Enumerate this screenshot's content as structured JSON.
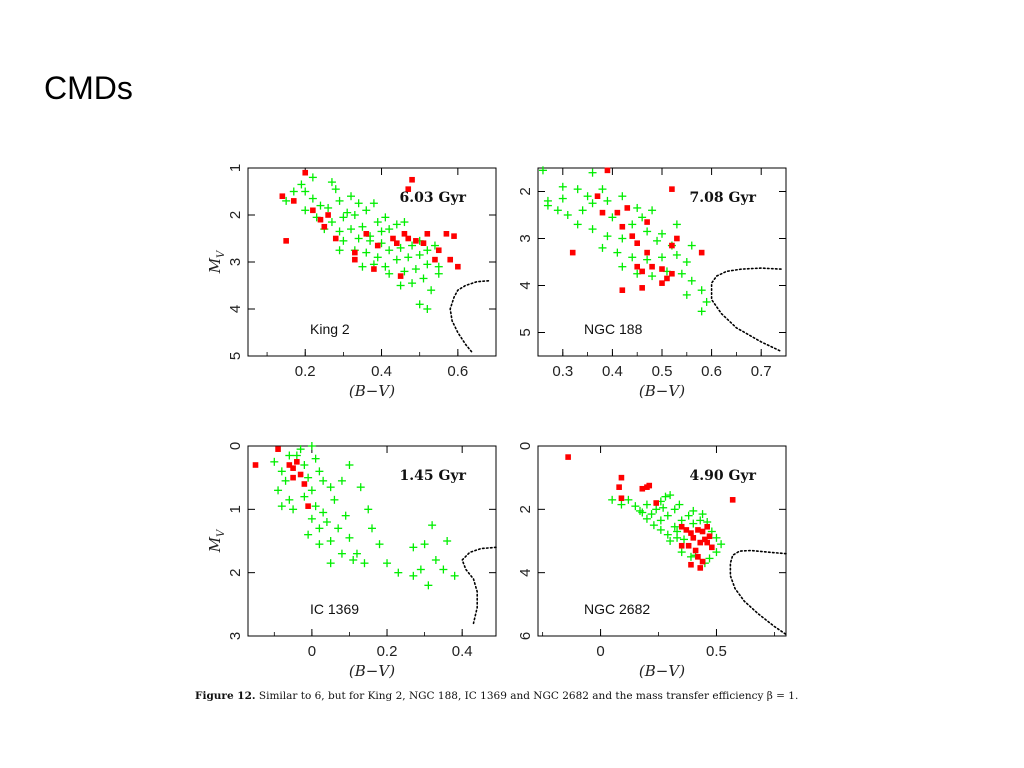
{
  "slide": {
    "title": "CMDs"
  },
  "caption": {
    "label": "Figure 12.",
    "text": "Similar to 6, but for King 2, NGC 188, IC 1369 and NGC 2682 and the mass transfer efficiency β = 1."
  },
  "colors": {
    "blue_stragglers": "#ff0000",
    "models": "#00ee00",
    "isochrone": "#000000"
  },
  "chart_data": [
    {
      "type": "scatter",
      "panel": "top-left",
      "cluster": "King 2",
      "age_label": "6.03 Gyr",
      "xlabel": "(B−V)",
      "ylabel": "M_V",
      "xlim": [
        0.05,
        0.7
      ],
      "ylim": [
        1,
        5
      ],
      "y_inverted": true,
      "xticks": [
        "0.2",
        "0.4",
        "0.6"
      ],
      "yticks": [
        "1",
        "2",
        "3",
        "4",
        "5"
      ],
      "red_points": [
        [
          0.2,
          1.1
        ],
        [
          0.14,
          1.6
        ],
        [
          0.17,
          1.7
        ],
        [
          0.22,
          1.9
        ],
        [
          0.15,
          2.55
        ],
        [
          0.24,
          2.1
        ],
        [
          0.26,
          2.0
        ],
        [
          0.25,
          2.25
        ],
        [
          0.28,
          2.5
        ],
        [
          0.33,
          2.8
        ],
        [
          0.36,
          2.4
        ],
        [
          0.39,
          2.65
        ],
        [
          0.43,
          2.5
        ],
        [
          0.44,
          2.6
        ],
        [
          0.46,
          2.4
        ],
        [
          0.47,
          2.5
        ],
        [
          0.49,
          2.55
        ],
        [
          0.47,
          1.45
        ],
        [
          0.48,
          1.25
        ],
        [
          0.51,
          2.6
        ],
        [
          0.52,
          2.4
        ],
        [
          0.54,
          2.95
        ],
        [
          0.55,
          2.75
        ],
        [
          0.57,
          2.4
        ],
        [
          0.58,
          2.95
        ],
        [
          0.59,
          2.45
        ],
        [
          0.6,
          3.1
        ],
        [
          0.38,
          3.15
        ],
        [
          0.45,
          3.3
        ],
        [
          0.33,
          2.95
        ]
      ],
      "green_points": [
        [
          0.22,
          1.2
        ],
        [
          0.19,
          1.35
        ],
        [
          0.17,
          1.5
        ],
        [
          0.2,
          1.5
        ],
        [
          0.28,
          1.45
        ],
        [
          0.15,
          1.7
        ],
        [
          0.22,
          1.65
        ],
        [
          0.26,
          1.85
        ],
        [
          0.29,
          1.7
        ],
        [
          0.32,
          1.6
        ],
        [
          0.34,
          1.75
        ],
        [
          0.2,
          1.9
        ],
        [
          0.23,
          2.05
        ],
        [
          0.27,
          2.15
        ],
        [
          0.3,
          2.05
        ],
        [
          0.33,
          2.0
        ],
        [
          0.36,
          1.9
        ],
        [
          0.38,
          1.75
        ],
        [
          0.25,
          2.3
        ],
        [
          0.29,
          2.35
        ],
        [
          0.32,
          2.3
        ],
        [
          0.35,
          2.25
        ],
        [
          0.39,
          2.15
        ],
        [
          0.41,
          2.05
        ],
        [
          0.3,
          2.55
        ],
        [
          0.34,
          2.5
        ],
        [
          0.37,
          2.55
        ],
        [
          0.4,
          2.35
        ],
        [
          0.42,
          2.3
        ],
        [
          0.44,
          2.2
        ],
        [
          0.46,
          2.15
        ],
        [
          0.33,
          2.75
        ],
        [
          0.36,
          2.8
        ],
        [
          0.39,
          2.9
        ],
        [
          0.42,
          2.75
        ],
        [
          0.45,
          2.7
        ],
        [
          0.48,
          2.65
        ],
        [
          0.5,
          2.55
        ],
        [
          0.38,
          3.05
        ],
        [
          0.41,
          3.1
        ],
        [
          0.44,
          2.95
        ],
        [
          0.47,
          2.9
        ],
        [
          0.5,
          2.85
        ],
        [
          0.52,
          2.75
        ],
        [
          0.54,
          2.65
        ],
        [
          0.42,
          3.25
        ],
        [
          0.46,
          3.2
        ],
        [
          0.49,
          3.15
        ],
        [
          0.52,
          3.05
        ],
        [
          0.55,
          3.1
        ],
        [
          0.48,
          3.45
        ],
        [
          0.51,
          3.35
        ],
        [
          0.53,
          3.6
        ],
        [
          0.5,
          3.9
        ],
        [
          0.52,
          4.0
        ],
        [
          0.55,
          3.25
        ],
        [
          0.45,
          3.5
        ],
        [
          0.35,
          3.1
        ],
        [
          0.37,
          2.45
        ],
        [
          0.29,
          2.75
        ],
        [
          0.24,
          1.8
        ],
        [
          0.27,
          1.3
        ],
        [
          0.31,
          1.95
        ],
        [
          0.4,
          2.6
        ]
      ],
      "isochrone": [
        [
          0.68,
          3.4
        ],
        [
          0.65,
          3.42
        ],
        [
          0.62,
          3.5
        ],
        [
          0.6,
          3.6
        ],
        [
          0.59,
          3.75
        ],
        [
          0.58,
          4.0
        ],
        [
          0.585,
          4.25
        ],
        [
          0.6,
          4.5
        ],
        [
          0.62,
          4.75
        ],
        [
          0.64,
          4.95
        ]
      ]
    },
    {
      "type": "scatter",
      "panel": "top-right",
      "cluster": "NGC 188",
      "age_label": "7.08 Gyr",
      "xlabel": "(B−V)",
      "ylabel": "M_V",
      "xlim": [
        0.25,
        0.75
      ],
      "ylim": [
        1.5,
        5.5
      ],
      "y_inverted": true,
      "xticks": [
        "0.3",
        "0.4",
        "0.5",
        "0.6",
        "0.7"
      ],
      "yticks": [
        "2",
        "3",
        "4",
        "5"
      ],
      "red_points": [
        [
          0.39,
          1.55
        ],
        [
          0.37,
          2.1
        ],
        [
          0.38,
          2.45
        ],
        [
          0.41,
          2.45
        ],
        [
          0.43,
          2.35
        ],
        [
          0.42,
          2.75
        ],
        [
          0.44,
          2.95
        ],
        [
          0.47,
          2.65
        ],
        [
          0.45,
          3.1
        ],
        [
          0.47,
          3.3
        ],
        [
          0.45,
          3.6
        ],
        [
          0.46,
          3.7
        ],
        [
          0.48,
          3.6
        ],
        [
          0.5,
          3.65
        ],
        [
          0.52,
          3.75
        ],
        [
          0.51,
          3.85
        ],
        [
          0.5,
          3.95
        ],
        [
          0.52,
          3.15
        ],
        [
          0.53,
          3.0
        ],
        [
          0.42,
          4.1
        ],
        [
          0.46,
          4.05
        ],
        [
          0.58,
          3.3
        ],
        [
          0.32,
          3.3
        ],
        [
          0.52,
          1.95
        ]
      ],
      "green_points": [
        [
          0.26,
          1.55
        ],
        [
          0.3,
          1.9
        ],
        [
          0.33,
          1.95
        ],
        [
          0.36,
          1.6
        ],
        [
          0.38,
          1.95
        ],
        [
          0.27,
          2.3
        ],
        [
          0.29,
          2.4
        ],
        [
          0.31,
          2.5
        ],
        [
          0.34,
          2.4
        ],
        [
          0.36,
          2.25
        ],
        [
          0.39,
          2.2
        ],
        [
          0.42,
          2.1
        ],
        [
          0.45,
          2.35
        ],
        [
          0.48,
          2.4
        ],
        [
          0.33,
          2.7
        ],
        [
          0.36,
          2.8
        ],
        [
          0.39,
          2.95
        ],
        [
          0.42,
          3.0
        ],
        [
          0.44,
          2.7
        ],
        [
          0.47,
          2.85
        ],
        [
          0.5,
          2.9
        ],
        [
          0.53,
          2.7
        ],
        [
          0.38,
          3.2
        ],
        [
          0.41,
          3.3
        ],
        [
          0.44,
          3.4
        ],
        [
          0.47,
          3.45
        ],
        [
          0.5,
          3.4
        ],
        [
          0.53,
          3.35
        ],
        [
          0.55,
          3.5
        ],
        [
          0.42,
          3.6
        ],
        [
          0.45,
          3.75
        ],
        [
          0.48,
          3.8
        ],
        [
          0.51,
          3.7
        ],
        [
          0.54,
          3.75
        ],
        [
          0.56,
          3.9
        ],
        [
          0.55,
          4.2
        ],
        [
          0.58,
          4.1
        ],
        [
          0.59,
          4.35
        ],
        [
          0.58,
          4.55
        ],
        [
          0.49,
          3.05
        ],
        [
          0.4,
          2.55
        ],
        [
          0.35,
          2.1
        ],
        [
          0.46,
          2.55
        ],
        [
          0.52,
          3.15
        ],
        [
          0.56,
          3.15
        ],
        [
          0.3,
          2.15
        ],
        [
          0.27,
          2.2
        ]
      ],
      "isochrone": [
        [
          0.74,
          3.65
        ],
        [
          0.7,
          3.63
        ],
        [
          0.66,
          3.65
        ],
        [
          0.63,
          3.7
        ],
        [
          0.61,
          3.8
        ],
        [
          0.6,
          3.95
        ],
        [
          0.6,
          4.3
        ],
        [
          0.62,
          4.6
        ],
        [
          0.65,
          4.9
        ],
        [
          0.7,
          5.2
        ],
        [
          0.74,
          5.4
        ]
      ]
    },
    {
      "type": "scatter",
      "panel": "bottom-left",
      "cluster": "IC 1369",
      "age_label": "1.45 Gyr",
      "xlabel": "(B−V)",
      "ylabel": "M_V",
      "xlim": [
        -0.17,
        0.49
      ],
      "ylim": [
        0,
        3
      ],
      "y_inverted": true,
      "xticks": [
        "0",
        "0.2",
        "0.4"
      ],
      "yticks": [
        "0",
        "1",
        "2",
        "3"
      ],
      "red_points": [
        [
          -0.15,
          0.3
        ],
        [
          -0.09,
          0.05
        ],
        [
          -0.06,
          0.3
        ],
        [
          -0.05,
          0.35
        ],
        [
          -0.04,
          0.25
        ],
        [
          -0.03,
          0.45
        ],
        [
          -0.02,
          0.6
        ],
        [
          -0.01,
          0.95
        ],
        [
          -0.05,
          0.5
        ]
      ],
      "green_points": [
        [
          -0.1,
          0.25
        ],
        [
          -0.08,
          0.4
        ],
        [
          -0.07,
          0.55
        ],
        [
          -0.09,
          0.7
        ],
        [
          -0.06,
          0.85
        ],
        [
          -0.05,
          1.0
        ],
        [
          -0.04,
          0.15
        ],
        [
          -0.03,
          0.05
        ],
        [
          -0.02,
          0.3
        ],
        [
          -0.01,
          0.5
        ],
        [
          0.0,
          0.0
        ],
        [
          0.01,
          0.2
        ],
        [
          0.02,
          0.4
        ],
        [
          0.03,
          0.55
        ],
        [
          0.0,
          0.7
        ],
        [
          -0.02,
          0.8
        ],
        [
          0.01,
          0.95
        ],
        [
          0.03,
          1.05
        ],
        [
          0.05,
          0.65
        ],
        [
          0.06,
          0.85
        ],
        [
          0.04,
          1.2
        ],
        [
          0.02,
          1.3
        ],
        [
          0.0,
          1.15
        ],
        [
          -0.01,
          1.4
        ],
        [
          0.02,
          1.55
        ],
        [
          0.05,
          1.5
        ],
        [
          0.07,
          1.3
        ],
        [
          0.09,
          1.1
        ],
        [
          0.1,
          1.45
        ],
        [
          0.12,
          1.7
        ],
        [
          0.14,
          1.85
        ],
        [
          0.08,
          1.7
        ],
        [
          0.05,
          1.85
        ],
        [
          0.13,
          0.65
        ],
        [
          0.15,
          1.0
        ],
        [
          0.16,
          1.3
        ],
        [
          0.18,
          1.55
        ],
        [
          0.2,
          1.85
        ],
        [
          0.23,
          2.0
        ],
        [
          0.27,
          1.6
        ],
        [
          0.3,
          1.55
        ],
        [
          0.33,
          1.8
        ],
        [
          0.35,
          1.95
        ],
        [
          0.38,
          2.05
        ],
        [
          0.31,
          2.2
        ],
        [
          0.29,
          1.95
        ],
        [
          0.32,
          1.25
        ],
        [
          0.36,
          1.5
        ],
        [
          -0.06,
          0.15
        ],
        [
          0.1,
          0.3
        ],
        [
          0.08,
          0.55
        ],
        [
          -0.08,
          0.95
        ],
        [
          0.11,
          1.8
        ],
        [
          0.27,
          2.05
        ]
      ],
      "isochrone": [
        [
          0.49,
          1.6
        ],
        [
          0.45,
          1.62
        ],
        [
          0.42,
          1.68
        ],
        [
          0.4,
          1.8
        ],
        [
          0.41,
          1.95
        ],
        [
          0.43,
          2.1
        ],
        [
          0.44,
          2.3
        ],
        [
          0.44,
          2.55
        ],
        [
          0.43,
          2.8
        ]
      ]
    },
    {
      "type": "scatter",
      "panel": "bottom-right",
      "cluster": "NGC 2682",
      "age_label": "4.90 Gyr",
      "xlabel": "(B−V)",
      "ylabel": "M_V",
      "xlim": [
        -0.27,
        0.8
      ],
      "ylim": [
        0,
        6
      ],
      "y_inverted": true,
      "xticks": [
        "0",
        "0.5"
      ],
      "yticks": [
        "0",
        "2",
        "4",
        "6"
      ],
      "red_points": [
        [
          -0.14,
          0.35
        ],
        [
          0.09,
          1.0
        ],
        [
          0.08,
          1.3
        ],
        [
          0.09,
          1.65
        ],
        [
          0.18,
          1.35
        ],
        [
          0.2,
          1.3
        ],
        [
          0.21,
          1.25
        ],
        [
          0.24,
          1.8
        ],
        [
          0.35,
          2.55
        ],
        [
          0.37,
          2.65
        ],
        [
          0.39,
          2.75
        ],
        [
          0.4,
          2.9
        ],
        [
          0.42,
          2.65
        ],
        [
          0.43,
          3.05
        ],
        [
          0.44,
          2.7
        ],
        [
          0.45,
          2.95
        ],
        [
          0.46,
          2.55
        ],
        [
          0.47,
          2.85
        ],
        [
          0.48,
          3.2
        ],
        [
          0.38,
          3.15
        ],
        [
          0.41,
          3.3
        ],
        [
          0.42,
          3.5
        ],
        [
          0.44,
          3.65
        ],
        [
          0.39,
          3.75
        ],
        [
          0.43,
          3.85
        ],
        [
          0.57,
          1.7
        ],
        [
          0.35,
          3.15
        ],
        [
          0.46,
          3.05
        ]
      ],
      "green_points": [
        [
          0.05,
          1.7
        ],
        [
          0.09,
          1.85
        ],
        [
          0.12,
          1.7
        ],
        [
          0.15,
          1.9
        ],
        [
          0.17,
          2.05
        ],
        [
          0.2,
          1.85
        ],
        [
          0.22,
          2.15
        ],
        [
          0.24,
          2.0
        ],
        [
          0.26,
          1.75
        ],
        [
          0.28,
          1.6
        ],
        [
          0.3,
          1.55
        ],
        [
          0.2,
          2.3
        ],
        [
          0.23,
          2.5
        ],
        [
          0.26,
          2.35
        ],
        [
          0.29,
          2.2
        ],
        [
          0.32,
          2.0
        ],
        [
          0.34,
          1.85
        ],
        [
          0.26,
          2.65
        ],
        [
          0.29,
          2.8
        ],
        [
          0.32,
          2.55
        ],
        [
          0.35,
          2.35
        ],
        [
          0.38,
          2.2
        ],
        [
          0.4,
          2.05
        ],
        [
          0.3,
          3.0
        ],
        [
          0.33,
          2.9
        ],
        [
          0.36,
          2.95
        ],
        [
          0.4,
          2.45
        ],
        [
          0.43,
          2.35
        ],
        [
          0.46,
          2.4
        ],
        [
          0.48,
          2.7
        ],
        [
          0.5,
          2.9
        ],
        [
          0.52,
          3.1
        ],
        [
          0.5,
          3.35
        ],
        [
          0.47,
          3.55
        ],
        [
          0.45,
          3.7
        ],
        [
          0.39,
          3.5
        ],
        [
          0.35,
          3.35
        ],
        [
          0.41,
          3.45
        ],
        [
          0.18,
          2.1
        ],
        [
          0.27,
          1.95
        ],
        [
          0.33,
          2.7
        ],
        [
          0.44,
          2.15
        ]
      ],
      "isochrone": [
        [
          0.8,
          3.4
        ],
        [
          0.72,
          3.35
        ],
        [
          0.65,
          3.3
        ],
        [
          0.6,
          3.32
        ],
        [
          0.57,
          3.45
        ],
        [
          0.56,
          3.7
        ],
        [
          0.56,
          4.1
        ],
        [
          0.58,
          4.5
        ],
        [
          0.62,
          4.9
        ],
        [
          0.68,
          5.3
        ],
        [
          0.75,
          5.7
        ],
        [
          0.8,
          5.95
        ]
      ]
    }
  ]
}
